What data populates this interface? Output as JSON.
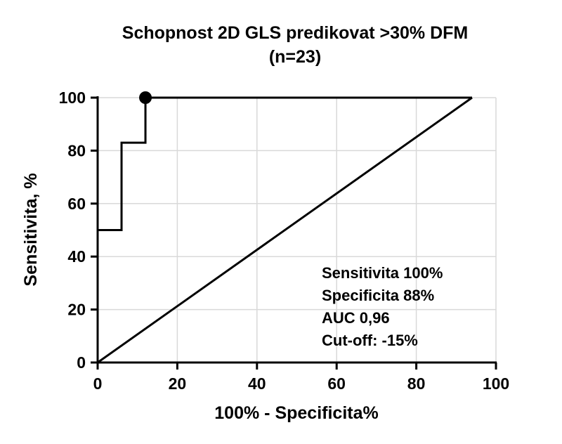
{
  "chart_data": {
    "type": "line",
    "title_line1": "Schopnost 2D GLS predikovat >30% DFM",
    "title_line2": "(n=23)",
    "xlabel": "100% - Specificita%",
    "ylabel": "Sensitivita, %",
    "xlim": [
      0,
      100
    ],
    "ylim": [
      0,
      100
    ],
    "xticks": [
      "0",
      "20",
      "40",
      "60",
      "80",
      "100"
    ],
    "yticks": [
      "0",
      "20",
      "40",
      "60",
      "80",
      "100"
    ],
    "grid": true,
    "series": [
      {
        "x": [
          0,
          0,
          6,
          6,
          12,
          12,
          94
        ],
        "y": [
          17,
          50,
          50,
          83,
          83,
          100,
          100
        ]
      },
      {
        "x": [
          0,
          94
        ],
        "y": [
          0,
          100
        ]
      }
    ],
    "cutoff_point": {
      "x": 12,
      "y": 100
    },
    "annotations": [
      "Sensitivita 100%",
      "Specificita 88%",
      "AUC 0,96",
      "Cut-off:  -15%"
    ]
  }
}
